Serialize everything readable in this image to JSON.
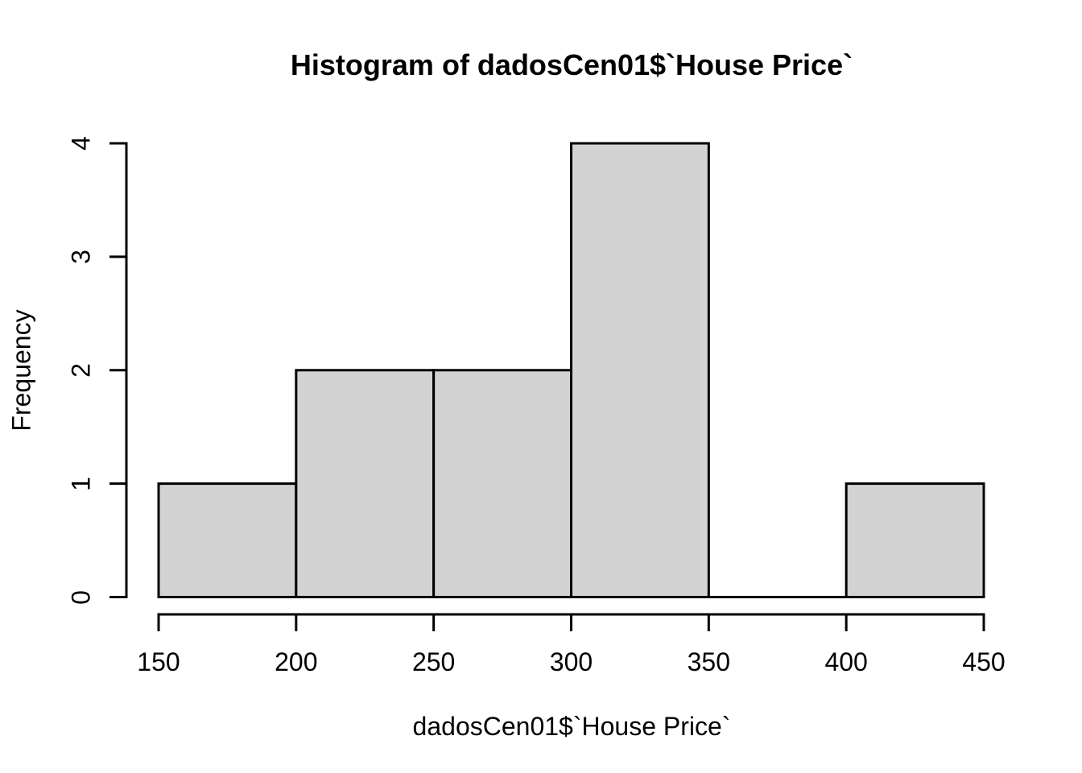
{
  "chart_data": {
    "type": "bar",
    "subtype": "histogram",
    "title": "Histogram of dadosCen01$`House Price`",
    "xlabel": "dadosCen01$`House Price`",
    "ylabel": "Frequency",
    "breaks": [
      150,
      200,
      250,
      300,
      350,
      400,
      450
    ],
    "counts": [
      1,
      2,
      2,
      4,
      0,
      1
    ],
    "x_tick_labels": [
      "150",
      "200",
      "250",
      "300",
      "350",
      "400",
      "450"
    ],
    "y_tick_labels": [
      "0",
      "1",
      "2",
      "3",
      "4"
    ],
    "x_ticks": [
      150,
      200,
      250,
      300,
      350,
      400,
      450
    ],
    "y_ticks": [
      0,
      1,
      2,
      3,
      4
    ],
    "xlim": [
      150,
      450
    ],
    "ylim": [
      0,
      4
    ],
    "bar_fill": "#d3d3d3",
    "bar_border": "#000000",
    "axis_color": "#000000",
    "background": "#ffffff",
    "grid": false,
    "legend_position": "none"
  }
}
